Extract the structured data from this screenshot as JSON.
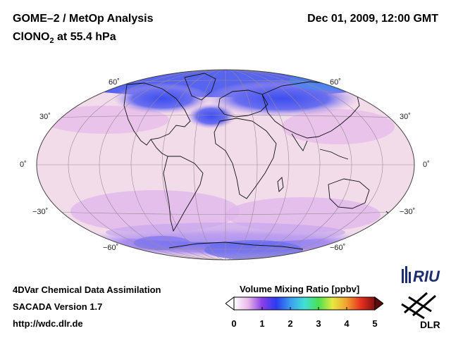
{
  "title": {
    "main": "GOME–2 / MetOp Analysis",
    "species_base": "ClONO",
    "species_sub": "2",
    "species_rest": " at 55.4 hPa",
    "date": "Dec 01, 2009, 12:00 GMT"
  },
  "footer": {
    "line1": "4DVar Chemical Data Assimilation",
    "line2": "SACADA Version 1.7",
    "line3": "http://wdc.dlr.de"
  },
  "latitude_labels": {
    "n60": "60˚",
    "n30": "30˚",
    "eq": "0˚",
    "s30": "−30˚",
    "s60": "−60˚"
  },
  "colorbar": {
    "title": "Volume Mixing Ratio [ppbv]",
    "ticks": [
      "0",
      "1",
      "2",
      "3",
      "4",
      "5"
    ],
    "range": [
      0,
      5
    ],
    "colors": [
      "#ffffff",
      "#e9b8e9",
      "#8a3ee8",
      "#2a3cf0",
      "#3c9cf0",
      "#40e0d8",
      "#4ae050",
      "#e8e840",
      "#f0a030",
      "#e83020",
      "#801010"
    ]
  },
  "logos": {
    "riu": "RIU",
    "dlr": "DLR"
  },
  "map_colors": {
    "background": "#f3dcea",
    "low": "#c7a0e8",
    "mid": "#6a70f0",
    "high": "#3a4cf0",
    "coast": "#111111",
    "grid": "#9a8a9a"
  }
}
